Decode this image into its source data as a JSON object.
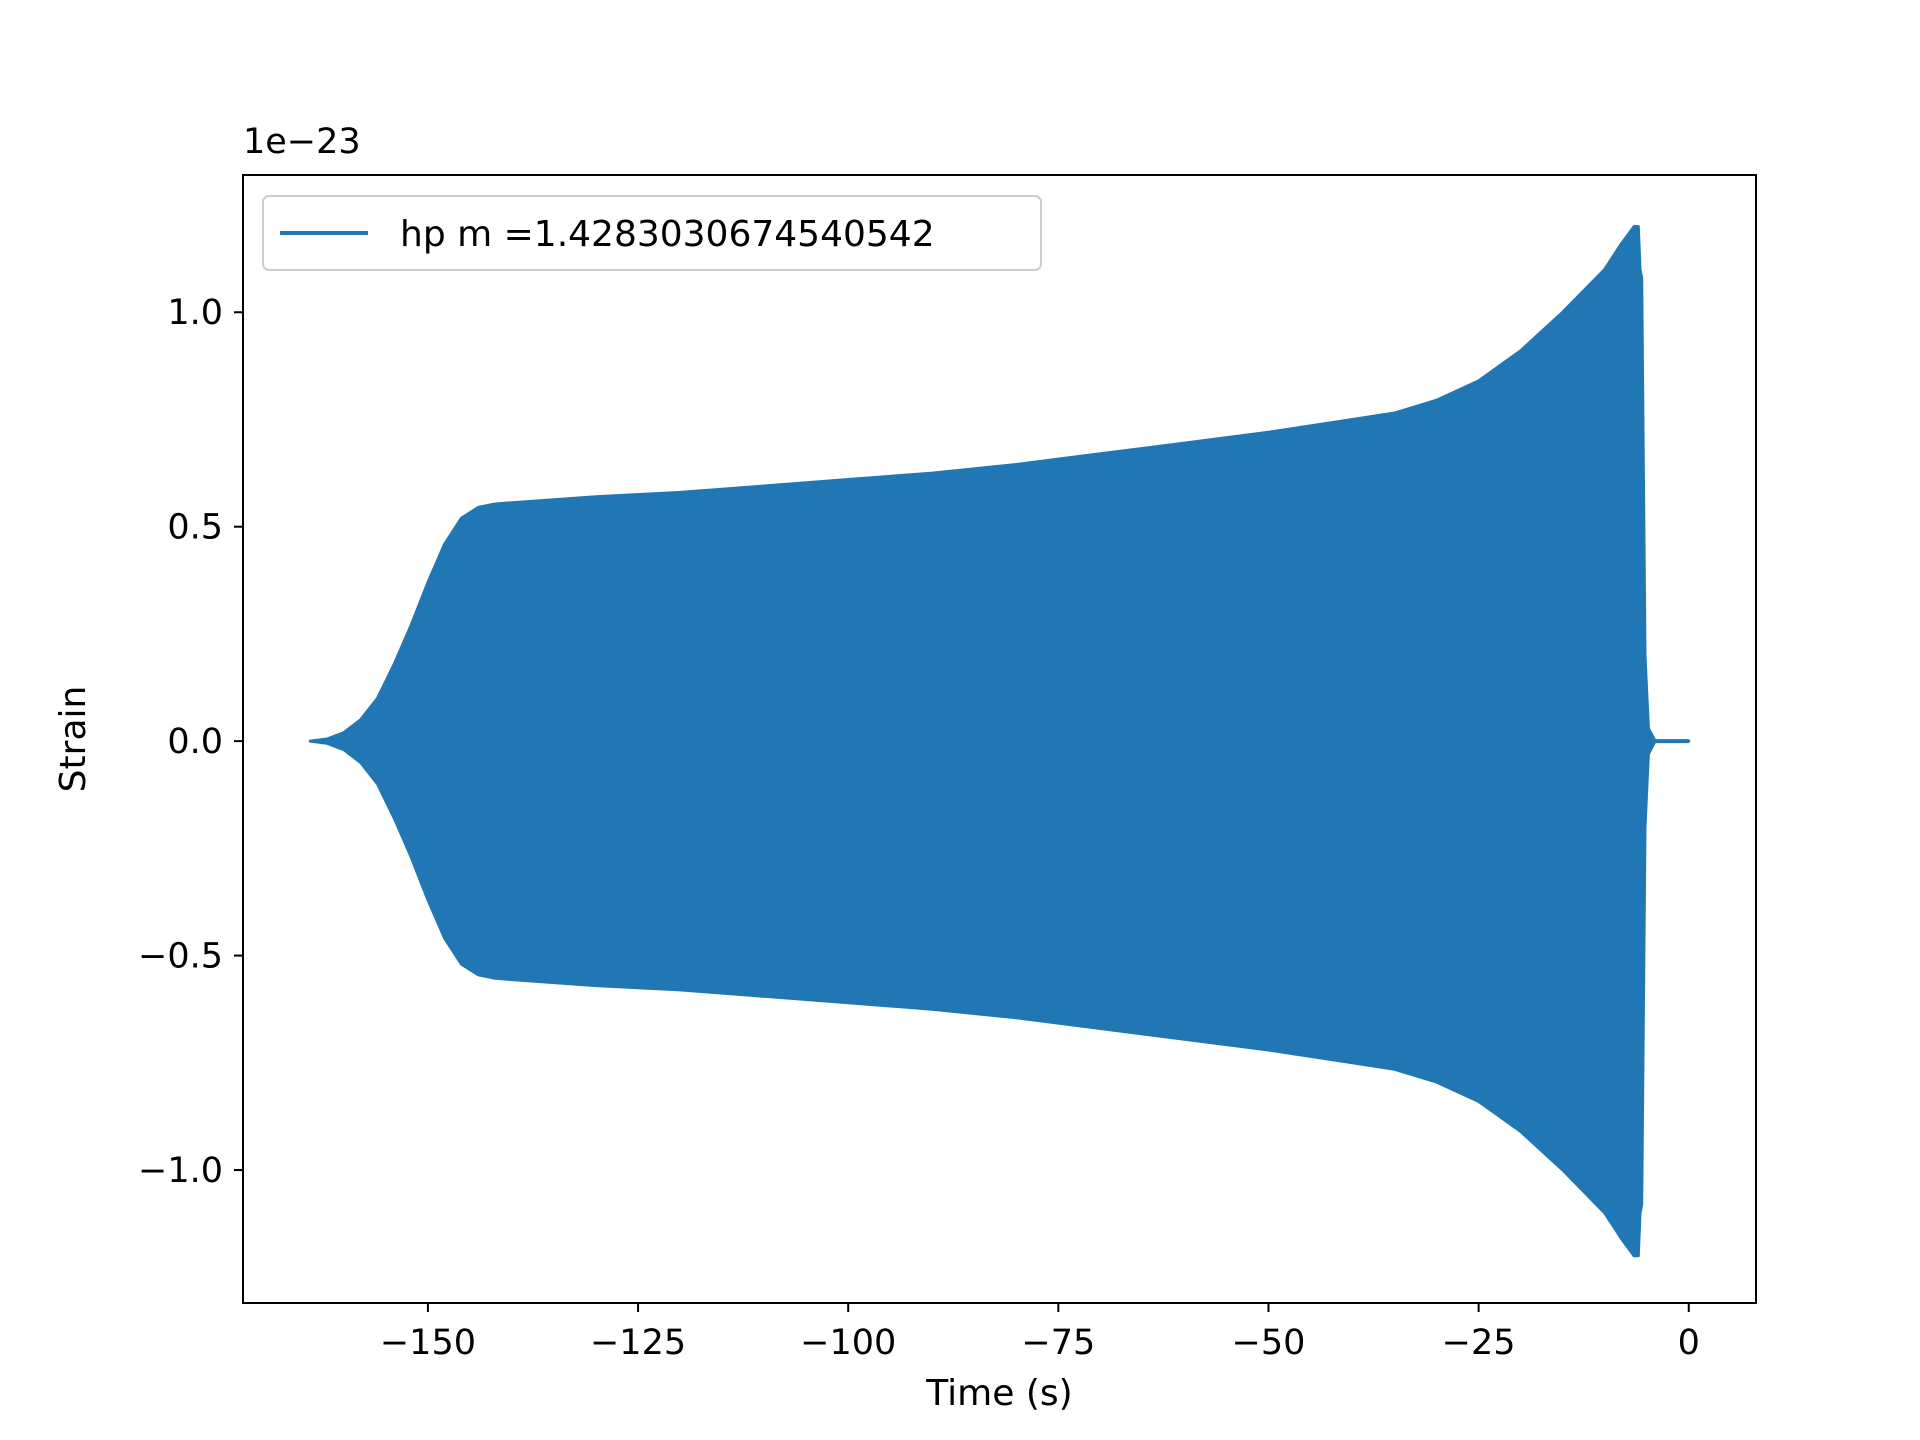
{
  "chart_data": {
    "type": "area",
    "title": "",
    "xlabel": "Time (s)",
    "ylabel": "Strain",
    "offset_text": "1e−23",
    "xlim": [
      -172,
      8
    ],
    "ylim": [
      -1.31,
      1.32
    ],
    "xticks": [
      -150,
      -125,
      -100,
      -75,
      -50,
      -25,
      0
    ],
    "xtick_labels": [
      "−150",
      "−125",
      "−100",
      "−75",
      "−50",
      "−25",
      "0"
    ],
    "yticks": [
      -1.0,
      -0.5,
      0.0,
      0.5,
      1.0
    ],
    "ytick_labels": [
      "−1.0",
      "−0.5",
      "0.0",
      "0.5",
      "1.0"
    ],
    "grid": false,
    "legend": {
      "position": "upper-left"
    },
    "series": [
      {
        "name": "hp m =1.4283030674540542",
        "color": "#2077b4",
        "envelope": {
          "x": [
            -164,
            -162,
            -160,
            -158,
            -156,
            -154,
            -152,
            -150,
            -148,
            -146,
            -144,
            -142,
            -140,
            -135,
            -130,
            -120,
            -110,
            -100,
            -90,
            -80,
            -70,
            -60,
            -50,
            -40,
            -35,
            -30,
            -25,
            -20,
            -15,
            -10,
            -8,
            -6.5,
            -6,
            -5.8,
            -5.6,
            -5.2,
            -4.8,
            -4.0,
            0
          ],
          "upper": [
            0.0,
            0.005,
            0.02,
            0.05,
            0.1,
            0.18,
            0.27,
            0.37,
            0.46,
            0.52,
            0.545,
            0.553,
            0.556,
            0.563,
            0.57,
            0.58,
            0.595,
            0.61,
            0.625,
            0.645,
            0.67,
            0.695,
            0.72,
            0.75,
            0.765,
            0.795,
            0.84,
            0.91,
            1.0,
            1.1,
            1.16,
            1.2,
            1.2,
            1.1,
            1.08,
            0.2,
            0.03,
            0.0,
            0.0
          ],
          "lower": [
            0.0,
            -0.005,
            -0.02,
            -0.05,
            -0.1,
            -0.18,
            -0.27,
            -0.37,
            -0.46,
            -0.52,
            -0.545,
            -0.553,
            -0.556,
            -0.563,
            -0.57,
            -0.58,
            -0.595,
            -0.61,
            -0.625,
            -0.645,
            -0.67,
            -0.695,
            -0.72,
            -0.75,
            -0.765,
            -0.795,
            -0.84,
            -0.91,
            -1.0,
            -1.1,
            -1.16,
            -1.2,
            -1.2,
            -1.1,
            -1.08,
            -0.2,
            -0.03,
            0.0,
            0.0
          ]
        }
      }
    ]
  }
}
